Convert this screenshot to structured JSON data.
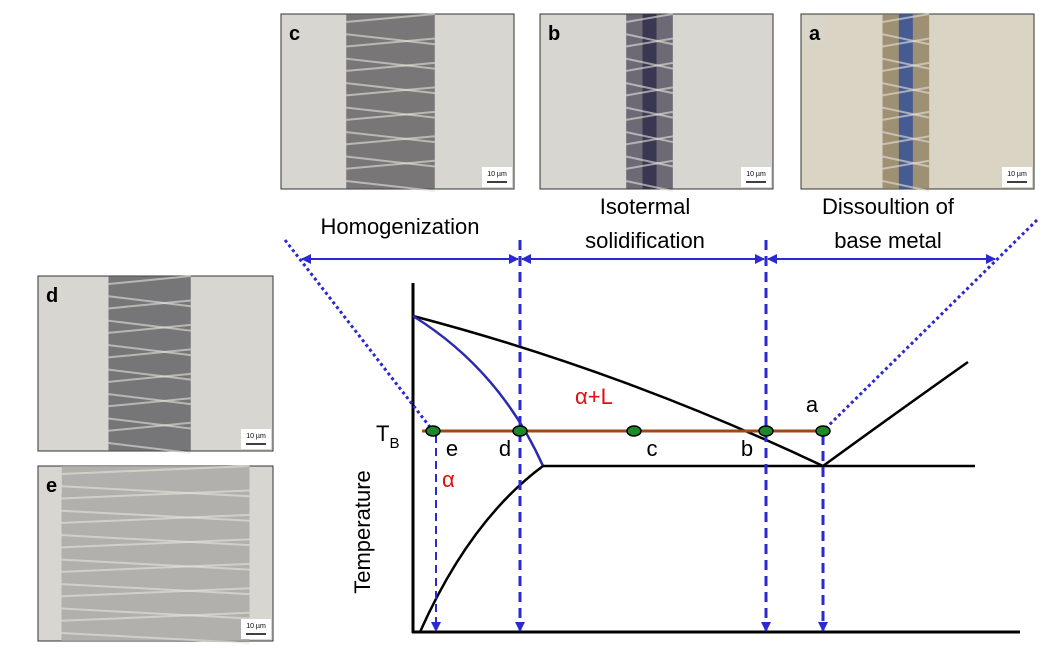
{
  "micrographs": [
    {
      "label": "c",
      "scale": "10 µm"
    },
    {
      "label": "b",
      "scale": "10 µm"
    },
    {
      "label": "a",
      "scale": "10 µm"
    },
    {
      "label": "d",
      "scale": "10 µm"
    },
    {
      "label": "e",
      "scale": "10 µm"
    }
  ],
  "stages": [
    {
      "lines": [
        "Homogenization"
      ]
    },
    {
      "lines": [
        "Isotermal",
        "solidification"
      ]
    },
    {
      "lines": [
        "Dissoultion of",
        "base metal"
      ]
    }
  ],
  "diagram": {
    "phase_label": "α+L",
    "temperature_label": {
      "main": "T",
      "sub": "B"
    },
    "points": [
      "e",
      "d",
      "c",
      "b",
      "a"
    ],
    "solid_phase": "α",
    "y_axis": "Temperature"
  }
}
